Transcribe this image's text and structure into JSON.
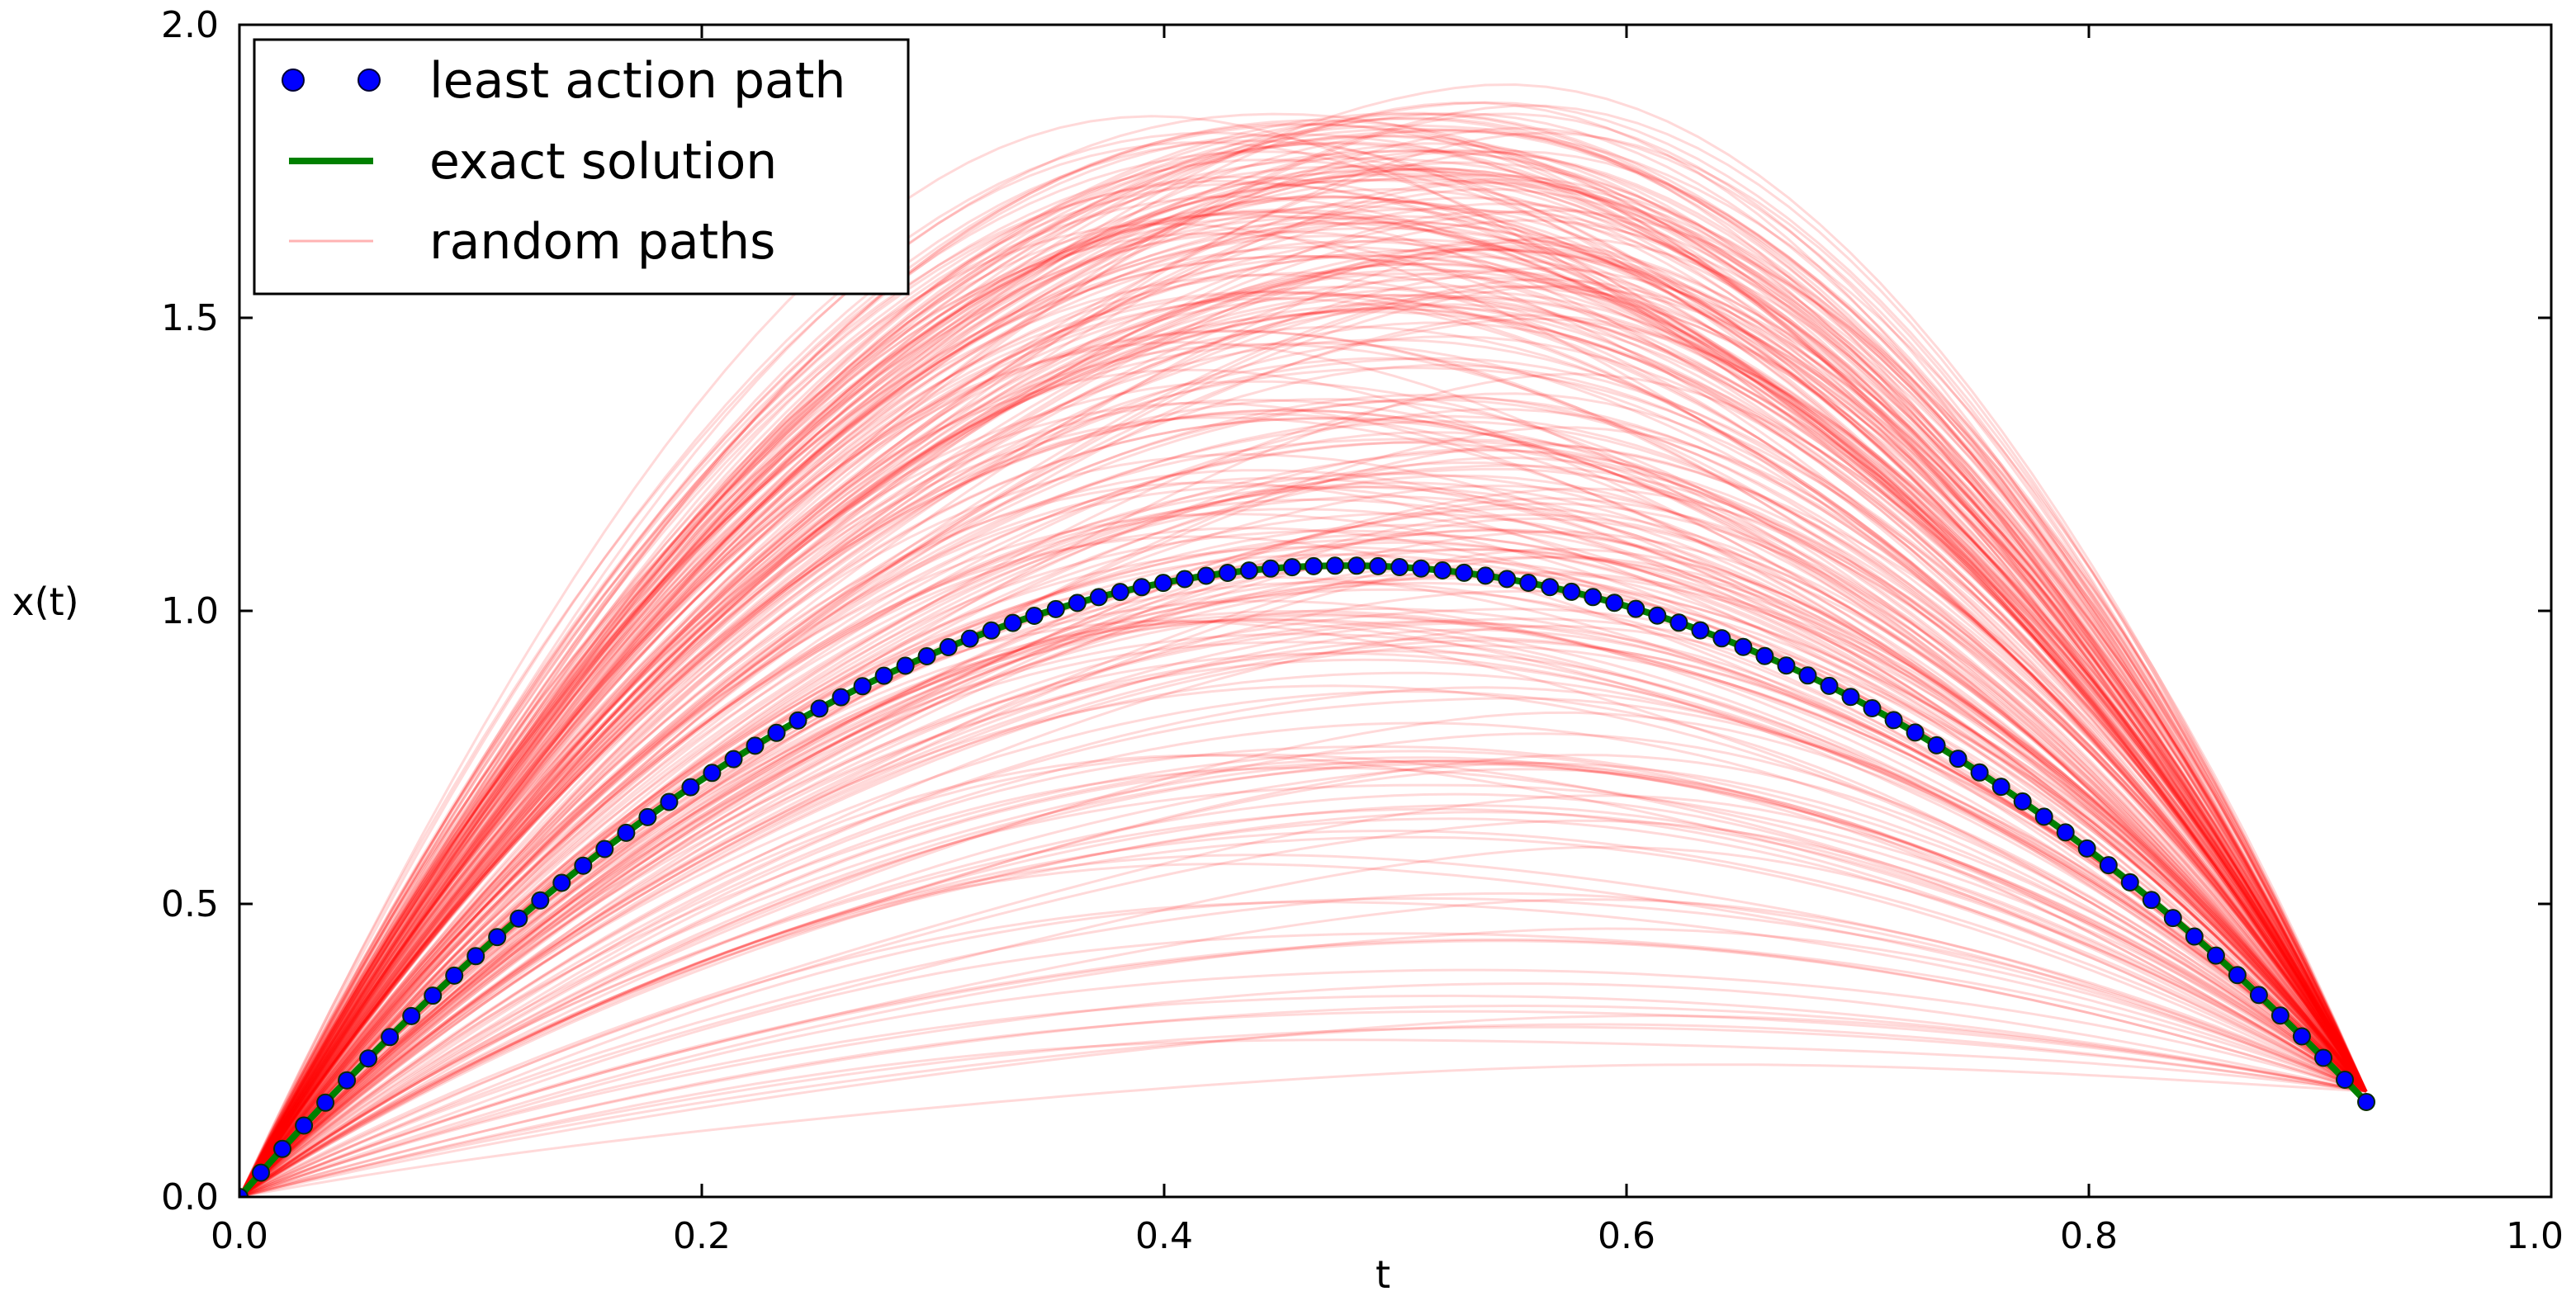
{
  "chart_data": {
    "type": "line",
    "title": "",
    "xlabel": "t",
    "ylabel": "x(t)",
    "xlim": [
      0.0,
      1.0
    ],
    "ylim": [
      0.0,
      2.0
    ],
    "xticks": [
      0.0,
      0.2,
      0.4,
      0.6,
      0.8,
      1.0
    ],
    "xtick_labels": [
      "0.0",
      "0.2",
      "0.4",
      "0.6",
      "0.8",
      "1.0"
    ],
    "yticks": [
      0.0,
      0.5,
      1.0,
      1.5,
      2.0
    ],
    "ytick_labels": [
      "0.0",
      "0.5",
      "1.0",
      "1.5",
      "2.0"
    ],
    "grid": false,
    "legend_position": "top-left",
    "legend": [
      {
        "label": "least action path",
        "style": "markers",
        "color": "#0000ff"
      },
      {
        "label": "exact solution",
        "style": "line",
        "color": "#008000"
      },
      {
        "label": "random paths",
        "style": "line",
        "color": "#ffb3b3"
      }
    ],
    "series": [
      {
        "name": "exact solution",
        "type": "line",
        "color": "#008000",
        "description": "parabola x(t) = 4.5 t - 4.7 t^2 from t = 0 to t = 0.92",
        "x": [
          0.0,
          0.1,
          0.2,
          0.3,
          0.4,
          0.479,
          0.55,
          0.6,
          0.7,
          0.8,
          0.92
        ],
        "y": [
          0.0,
          0.403,
          0.712,
          0.927,
          1.048,
          1.077,
          1.053,
          1.008,
          0.847,
          0.592,
          0.162
        ]
      },
      {
        "name": "least action path",
        "type": "scatter",
        "color": "#0000ff",
        "points": 100,
        "t_start": 0.0,
        "t_end": 0.92,
        "x": [
          0.0,
          0.1,
          0.2,
          0.3,
          0.4,
          0.479,
          0.55,
          0.6,
          0.7,
          0.8,
          0.92
        ],
        "y": [
          0.0,
          0.403,
          0.712,
          0.927,
          1.048,
          1.077,
          1.053,
          1.008,
          0.847,
          0.592,
          0.162
        ]
      },
      {
        "name": "random paths",
        "type": "line",
        "color": "#ff0000",
        "opacity": 0.15,
        "count": 300,
        "description": "random smooth paths from (0, 0) to (0.92, 0.18)",
        "t_start": 0.0,
        "t_end": 0.92,
        "start_value": 0.0,
        "end_value": 0.18,
        "peak_t": 0.49,
        "peak_min": 0.15,
        "peak_max": 1.87
      }
    ]
  }
}
